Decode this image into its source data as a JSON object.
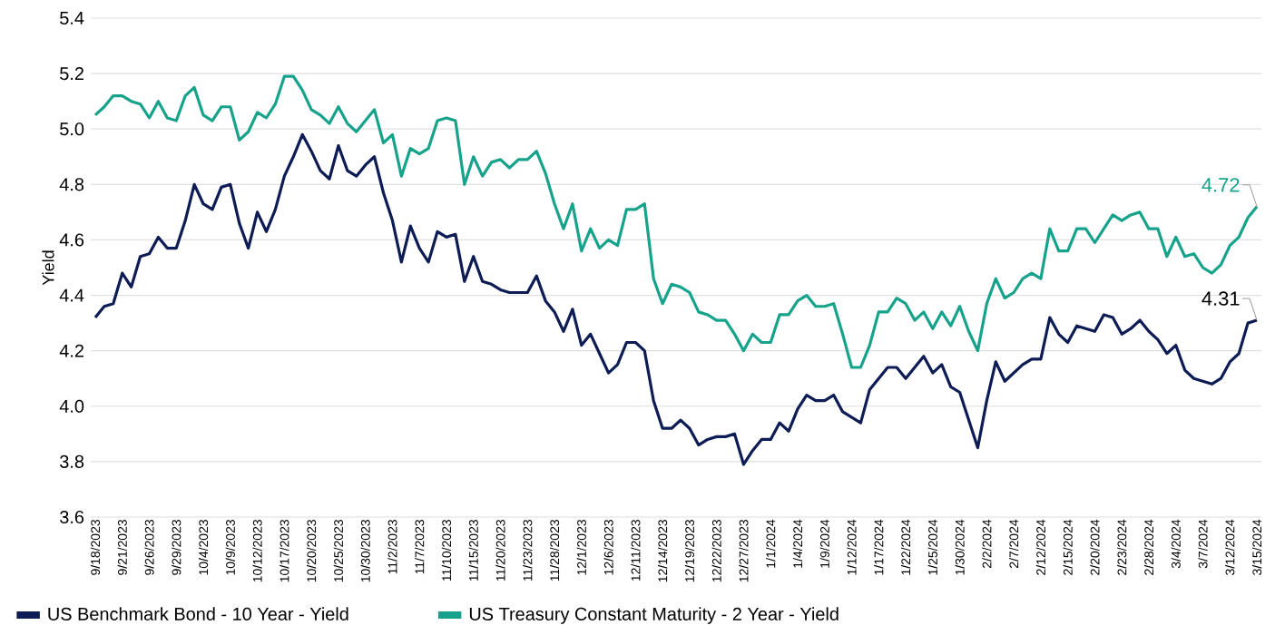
{
  "chart_data": {
    "type": "line",
    "ylabel": "Yield",
    "categories": [
      "9/18/2023",
      null,
      null,
      "9/21/2023",
      null,
      null,
      "9/26/2023",
      null,
      null,
      "9/29/2023",
      null,
      null,
      "10/4/2023",
      null,
      null,
      "10/9/2023",
      null,
      null,
      "10/12/2023",
      null,
      null,
      "10/17/2023",
      null,
      null,
      "10/20/2023",
      null,
      null,
      "10/25/2023",
      null,
      null,
      "10/30/2023",
      null,
      null,
      "11/2/2023",
      null,
      null,
      "11/7/2023",
      null,
      null,
      "11/10/2023",
      null,
      null,
      "11/15/2023",
      null,
      null,
      "11/20/2023",
      null,
      null,
      "11/23/2023",
      null,
      null,
      "11/28/2023",
      null,
      null,
      "12/1/2023",
      null,
      null,
      "12/6/2023",
      null,
      null,
      "12/11/2023",
      null,
      null,
      "12/14/2023",
      null,
      null,
      "12/19/2023",
      null,
      null,
      "12/22/2023",
      null,
      null,
      "12/27/2023",
      null,
      null,
      "1/1/2024",
      null,
      null,
      "1/4/2024",
      null,
      null,
      "1/9/2024",
      null,
      null,
      "1/12/2024",
      null,
      null,
      "1/17/2024",
      null,
      null,
      "1/22/2024",
      null,
      null,
      "1/25/2024",
      null,
      null,
      "1/30/2024",
      null,
      null,
      "2/2/2024",
      null,
      null,
      "2/7/2024",
      null,
      null,
      "2/12/2024",
      null,
      null,
      "2/15/2024",
      null,
      null,
      "2/20/2024",
      null,
      null,
      "2/23/2024",
      null,
      null,
      "2/28/2024",
      null,
      null,
      "3/4/2024",
      null,
      null,
      "3/7/2024",
      null,
      null,
      "3/12/2024",
      null,
      null,
      "3/15/2024"
    ],
    "series": [
      {
        "name": "US Benchmark Bond - 10 Year - Yield",
        "color": "#0d1c55",
        "values": [
          4.32,
          4.36,
          4.37,
          4.48,
          4.43,
          4.54,
          4.55,
          4.61,
          4.57,
          4.57,
          4.67,
          4.8,
          4.73,
          4.71,
          4.79,
          4.8,
          4.66,
          4.57,
          4.7,
          4.63,
          4.71,
          4.83,
          4.9,
          4.98,
          4.92,
          4.85,
          4.82,
          4.94,
          4.85,
          4.83,
          4.87,
          4.9,
          4.77,
          4.67,
          4.52,
          4.65,
          4.57,
          4.52,
          4.63,
          4.61,
          4.62,
          4.45,
          4.54,
          4.45,
          4.44,
          4.42,
          4.41,
          4.41,
          4.41,
          4.47,
          4.38,
          4.34,
          4.27,
          4.35,
          4.22,
          4.26,
          4.19,
          4.12,
          4.15,
          4.23,
          4.23,
          4.2,
          4.02,
          3.92,
          3.92,
          3.95,
          3.92,
          3.86,
          3.88,
          3.89,
          3.89,
          3.9,
          3.79,
          3.84,
          3.88,
          3.88,
          3.94,
          3.91,
          3.99,
          4.04,
          4.02,
          4.02,
          4.04,
          3.98,
          3.96,
          3.94,
          4.06,
          4.1,
          4.14,
          4.14,
          4.1,
          4.14,
          4.18,
          4.12,
          4.15,
          4.07,
          4.05,
          3.95,
          3.85,
          4.02,
          4.16,
          4.09,
          4.12,
          4.15,
          4.17,
          4.17,
          4.32,
          4.26,
          4.23,
          4.29,
          4.28,
          4.27,
          4.33,
          4.32,
          4.26,
          4.28,
          4.31,
          4.27,
          4.24,
          4.19,
          4.22,
          4.13,
          4.1,
          4.09,
          4.08,
          4.1,
          4.16,
          4.19,
          4.3,
          4.31
        ]
      },
      {
        "name": "US Treasury Constant Maturity - 2 Year - Yield",
        "color": "#17a38b",
        "values": [
          5.05,
          5.08,
          5.12,
          5.12,
          5.1,
          5.09,
          5.04,
          5.1,
          5.04,
          5.03,
          5.12,
          5.15,
          5.05,
          5.03,
          5.08,
          5.08,
          4.96,
          4.99,
          5.06,
          5.04,
          5.09,
          5.19,
          5.19,
          5.14,
          5.07,
          5.05,
          5.02,
          5.08,
          5.02,
          4.99,
          5.03,
          5.07,
          4.95,
          4.98,
          4.83,
          4.93,
          4.91,
          4.93,
          5.03,
          5.04,
          5.03,
          4.8,
          4.9,
          4.83,
          4.88,
          4.89,
          4.86,
          4.89,
          4.89,
          4.92,
          4.84,
          4.73,
          4.64,
          4.73,
          4.56,
          4.64,
          4.57,
          4.6,
          4.58,
          4.71,
          4.71,
          4.73,
          4.46,
          4.37,
          4.44,
          4.43,
          4.41,
          4.34,
          4.33,
          4.31,
          4.31,
          4.26,
          4.2,
          4.26,
          4.23,
          4.23,
          4.33,
          4.33,
          4.38,
          4.4,
          4.36,
          4.36,
          4.37,
          4.26,
          4.14,
          4.14,
          4.22,
          4.34,
          4.34,
          4.39,
          4.37,
          4.31,
          4.34,
          4.28,
          4.34,
          4.29,
          4.36,
          4.27,
          4.2,
          4.37,
          4.46,
          4.39,
          4.41,
          4.46,
          4.48,
          4.46,
          4.64,
          4.56,
          4.56,
          4.64,
          4.64,
          4.59,
          4.64,
          4.69,
          4.67,
          4.69,
          4.7,
          4.64,
          4.64,
          4.54,
          4.61,
          4.54,
          4.55,
          4.5,
          4.48,
          4.51,
          4.58,
          4.61,
          4.68,
          4.72
        ]
      }
    ],
    "ylim": [
      3.6,
      5.4
    ],
    "yticks": [
      {
        "value": 3.6,
        "label": "3.6"
      },
      {
        "value": 3.8,
        "label": "3.8"
      },
      {
        "value": 4.0,
        "label": "4.0"
      },
      {
        "value": 4.2,
        "label": "4.2"
      },
      {
        "value": 4.4,
        "label": "4.4"
      },
      {
        "value": 4.6,
        "label": "4.6"
      },
      {
        "value": 4.8,
        "label": "4.8"
      },
      {
        "value": 5.0,
        "label": "5.0"
      },
      {
        "value": 5.2,
        "label": "5.2"
      },
      {
        "value": 5.4,
        "label": "5.4"
      }
    ],
    "grid": "y",
    "legend": "bottom",
    "annotations": [
      {
        "text": "4.72",
        "x": "3/15/2024",
        "y": 4.72
      },
      {
        "text": "4.31",
        "x": "3/15/2024",
        "y": 4.31
      }
    ]
  }
}
